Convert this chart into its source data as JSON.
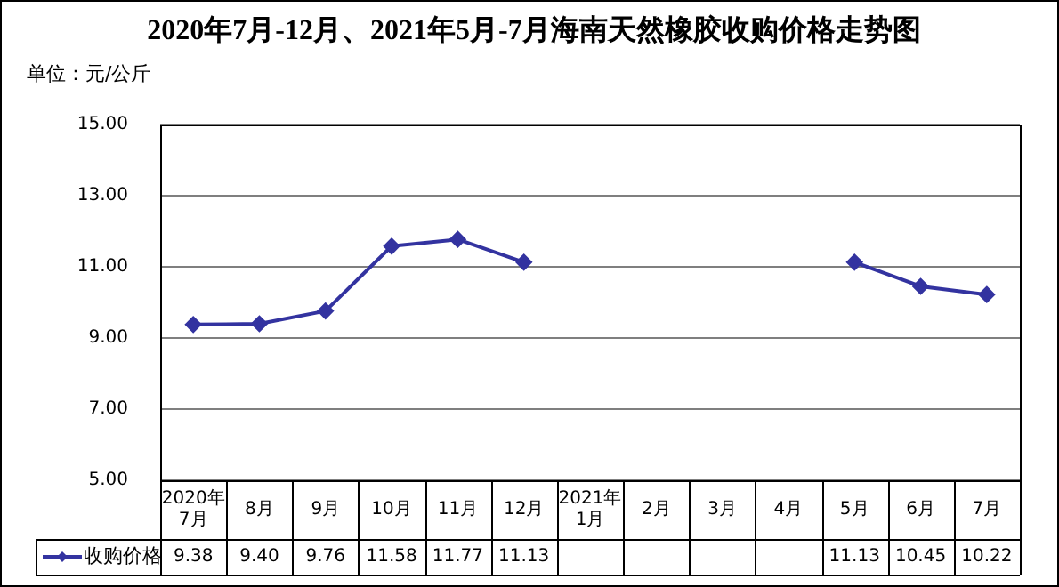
{
  "chart_data": {
    "type": "line",
    "title": "2020年7月-12月、2021年5月-7月海南天然橡胶收购价格走势图",
    "ylabel": "单位：元/公斤",
    "categories": [
      "2020年\n7月",
      "8月",
      "9月",
      "10月",
      "11月",
      "12月",
      "2021年\n1月",
      "2月",
      "3月",
      "4月",
      "5月",
      "6月",
      "7月"
    ],
    "series": [
      {
        "name": "收购价格",
        "color": "#3333a0",
        "values": [
          9.38,
          9.4,
          9.76,
          11.58,
          11.77,
          11.13,
          null,
          null,
          null,
          null,
          11.13,
          10.45,
          10.22
        ],
        "value_labels": [
          "9.38",
          "9.40",
          "9.76",
          "11.58",
          "11.77",
          "11.13",
          null,
          null,
          null,
          null,
          "11.13",
          "10.45",
          "10.22"
        ]
      }
    ],
    "ylim": [
      5,
      15
    ],
    "yticks": [
      {
        "value": 5,
        "label": "5.00"
      },
      {
        "value": 7,
        "label": "7.00"
      },
      {
        "value": 9,
        "label": "9.00"
      },
      {
        "value": 11,
        "label": "11.00"
      },
      {
        "value": 13,
        "label": "13.00"
      },
      {
        "value": 15,
        "label": "15.00"
      }
    ],
    "grid": "y",
    "legend": "bottom left",
    "marker": "diamond",
    "line_style": "solid"
  }
}
